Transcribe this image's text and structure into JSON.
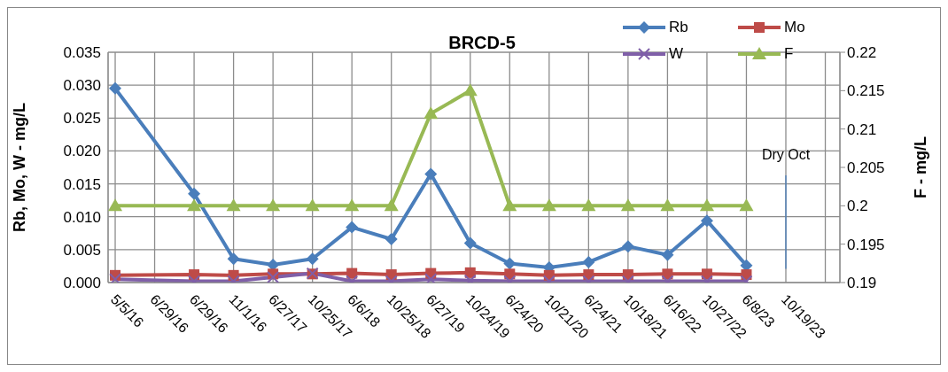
{
  "chart_data": {
    "type": "line",
    "title": "BRCD-5",
    "ylabel": "Rb, Mo, W - mg/L",
    "y2label": "F - mg/L",
    "categories": [
      "5/5/16",
      "6/29/16",
      "6/29/16",
      "11/1/16",
      "6/27/17",
      "10/25/17",
      "6/6/18",
      "10/25/18",
      "6/27/19",
      "10/24/19",
      "6/24/20",
      "10/21/20",
      "6/24/21",
      "10/18/21",
      "6/16/22",
      "10/27/22",
      "6/8/23",
      "10/19/23"
    ],
    "series": [
      {
        "name": "Rb",
        "color": "#4a7ebb",
        "marker": "diamond",
        "values": [
          0.0295,
          null,
          0.0135,
          0.0036,
          0.0027,
          0.0036,
          0.0084,
          0.0066,
          0.0165,
          0.006,
          0.0029,
          0.0023,
          0.0031,
          0.0055,
          0.0042,
          0.0094,
          0.0026,
          null
        ]
      },
      {
        "name": "Mo",
        "color": "#be4b48",
        "marker": "square",
        "values": [
          0.0011,
          null,
          0.0012,
          0.0011,
          0.0013,
          0.0013,
          0.0014,
          0.0012,
          0.0014,
          0.0015,
          0.0013,
          0.0011,
          0.0012,
          0.0012,
          0.0013,
          0.0013,
          0.0012,
          null
        ]
      },
      {
        "name": "W",
        "color": "#7f5fa8",
        "marker": "cross",
        "values": [
          0.0005,
          null,
          0.0002,
          0.0002,
          0.0008,
          0.0014,
          0.0002,
          0.0002,
          0.0005,
          0.0003,
          0.0002,
          0.0002,
          0.0002,
          0.0002,
          0.0002,
          0.0002,
          0.0002,
          null
        ]
      },
      {
        "name": "F",
        "color": "#98b954",
        "marker": "triangle",
        "axis": "y2",
        "values": [
          0.2,
          null,
          0.2,
          0.2,
          0.2,
          0.2,
          0.2,
          0.2,
          0.212,
          0.215,
          0.2,
          0.2,
          0.2,
          0.2,
          0.2,
          0.2,
          0.2,
          null
        ]
      }
    ],
    "ylim": [
      0,
      0.035
    ],
    "yticks": [
      {
        "value": 0,
        "label": "0.000"
      },
      {
        "value": 0.005,
        "label": "0.005"
      },
      {
        "value": 0.01,
        "label": "0.010"
      },
      {
        "value": 0.015,
        "label": "0.015"
      },
      {
        "value": 0.02,
        "label": "0.020"
      },
      {
        "value": 0.025,
        "label": "0.025"
      },
      {
        "value": 0.03,
        "label": "0.030"
      },
      {
        "value": 0.035,
        "label": "0.035"
      }
    ],
    "y2lim": [
      0.19,
      0.22
    ],
    "y2ticks": [
      0.19,
      0.195,
      0.2,
      0.205,
      0.21,
      0.215,
      0.22
    ],
    "ref_lines": [
      {
        "axis": "x",
        "value": "10/19/23",
        "label": "Dry Oct",
        "color": "#4a7ebb"
      }
    ],
    "grid": true,
    "legend": "top right"
  }
}
